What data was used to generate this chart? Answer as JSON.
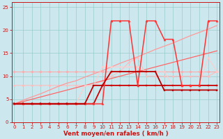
{
  "background_color": "#cce8ee",
  "grid_color": "#99cccc",
  "xlabel": "Vent moyen/en rafales ( km/h )",
  "xlabel_color": "#cc1111",
  "x_values": [
    0,
    1,
    2,
    3,
    4,
    5,
    6,
    7,
    8,
    9,
    10,
    11,
    12,
    13,
    14,
    15,
    16,
    17,
    18,
    19,
    20,
    21,
    22,
    23
  ],
  "lines": [
    {
      "color": "#ffaaaa",
      "lw": 0.8,
      "marker": "D",
      "ms": 1.8,
      "y": [
        11,
        11,
        11,
        11,
        11,
        11,
        11,
        11,
        11,
        11,
        11,
        11,
        11,
        11,
        11,
        11,
        11,
        11,
        11,
        11,
        11,
        11,
        11,
        11
      ]
    },
    {
      "color": "#ffbbbb",
      "lw": 0.8,
      "marker": "o",
      "ms": 1.8,
      "y": [
        8,
        8,
        8,
        8,
        8,
        8,
        8,
        8,
        8,
        8,
        9,
        10,
        11,
        13,
        14,
        10,
        10,
        10,
        10,
        10,
        10,
        10,
        10,
        11
      ]
    },
    {
      "color": "#ff9999",
      "lw": 0.9,
      "marker": null,
      "ms": 0,
      "y": [
        4,
        4.8,
        5.5,
        6.2,
        7,
        7.8,
        8.5,
        9,
        9.8,
        10.5,
        11.2,
        12,
        12.8,
        13.5,
        14.2,
        15,
        15.8,
        16.5,
        17.2,
        18,
        18.8,
        19.5,
        20.2,
        21
      ]
    },
    {
      "color": "#ff6666",
      "lw": 0.9,
      "marker": null,
      "ms": 0,
      "y": [
        4,
        4.5,
        5,
        5.5,
        6,
        6.5,
        7,
        7.5,
        8,
        8.5,
        9,
        9.5,
        10,
        10.5,
        11,
        11.5,
        12,
        12.5,
        13,
        13.5,
        14,
        14.5,
        15,
        15.5
      ]
    },
    {
      "color": "#ffcccc",
      "lw": 0.8,
      "marker": "o",
      "ms": 1.8,
      "y": [
        4,
        4,
        4,
        4,
        4,
        4,
        4,
        4,
        8,
        8,
        12,
        12,
        12,
        12,
        12,
        11,
        11,
        11,
        8,
        8,
        8,
        8,
        14,
        11
      ]
    },
    {
      "color": "#cc0000",
      "lw": 1.3,
      "marker": "s",
      "ms": 1.8,
      "y": [
        4,
        4,
        4,
        4,
        4,
        4,
        4,
        4,
        4,
        4,
        8,
        8,
        8,
        8,
        8,
        8,
        8,
        8,
        8,
        8,
        8,
        8,
        8,
        8
      ]
    },
    {
      "color": "#ff3333",
      "lw": 1.1,
      "marker": "^",
      "ms": 2.2,
      "y": [
        4,
        4,
        4,
        4,
        4,
        4,
        4,
        4,
        4,
        4,
        4,
        22,
        22,
        22,
        8,
        22,
        22,
        18,
        18,
        8,
        8,
        8,
        22,
        22
      ]
    },
    {
      "color": "#bb0000",
      "lw": 1.3,
      "marker": "s",
      "ms": 1.8,
      "y": [
        4,
        4,
        4,
        4,
        4,
        4,
        4,
        4,
        4,
        8,
        8,
        11,
        11,
        11,
        11,
        11,
        11,
        7,
        7,
        7,
        7,
        7,
        7,
        7
      ]
    }
  ],
  "ylim": [
    0,
    26
  ],
  "yticks": [
    0,
    5,
    10,
    15,
    20,
    25
  ],
  "xlim": [
    -0.3,
    23.3
  ],
  "xticks": [
    0,
    1,
    2,
    3,
    4,
    5,
    6,
    7,
    8,
    9,
    10,
    11,
    12,
    13,
    14,
    15,
    16,
    17,
    18,
    19,
    20,
    21,
    22,
    23
  ],
  "tick_color": "#cc1111",
  "tick_fontsize": 5.0,
  "xlabel_fontsize": 6.2,
  "xlabel_fontweight": "bold"
}
